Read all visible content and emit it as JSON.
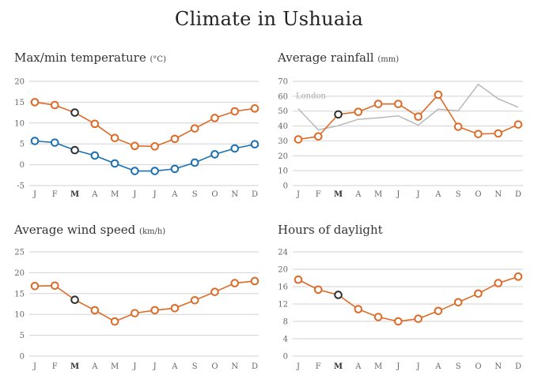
{
  "title": "Climate in Ushuaia",
  "colors": {
    "primary": "#dd6a26",
    "secondary": "#1b6fb1",
    "highlight": "#2f2f2f",
    "comparison": "#b8b8b8",
    "grid": "#d2d2d2"
  },
  "highlight_month_index": 2,
  "chart_data": [
    {
      "id": "temperature",
      "type": "line",
      "title": "Max/min temperature",
      "unit": "(°C)",
      "categories": [
        "J",
        "F",
        "M",
        "A",
        "M",
        "J",
        "J",
        "A",
        "S",
        "O",
        "N",
        "D"
      ],
      "yticks": [
        20,
        15,
        10,
        5,
        0,
        -5
      ],
      "ylim": [
        -5,
        20
      ],
      "grid": true,
      "series": [
        {
          "name": "Max",
          "color_key": "primary",
          "markers": true,
          "values": [
            15.0,
            14.3,
            12.5,
            9.8,
            6.4,
            4.5,
            4.4,
            6.2,
            8.7,
            11.2,
            12.8,
            13.5
          ]
        },
        {
          "name": "Min",
          "color_key": "secondary",
          "markers": true,
          "values": [
            5.7,
            5.3,
            3.5,
            2.2,
            0.3,
            -1.5,
            -1.5,
            -1.0,
            0.5,
            2.5,
            3.9,
            4.9
          ]
        }
      ]
    },
    {
      "id": "rainfall",
      "type": "line",
      "title": "Average rainfall",
      "unit": "(mm)",
      "categories": [
        "J",
        "F",
        "M",
        "A",
        "M",
        "J",
        "J",
        "A",
        "S",
        "O",
        "N",
        "D"
      ],
      "yticks": [
        70,
        60,
        50,
        40,
        30,
        20,
        10,
        0
      ],
      "ylim": [
        0,
        70
      ],
      "grid": true,
      "annotation": "London",
      "series": [
        {
          "name": "London",
          "color_key": "comparison",
          "markers": false,
          "values": [
            51.6,
            37.4,
            40.2,
            44.5,
            45.5,
            46.8,
            40.6,
            51.3,
            50.2,
            68.0,
            58.2,
            52.6
          ]
        },
        {
          "name": "Ushuaia",
          "color_key": "primary",
          "markers": true,
          "values": [
            31,
            33,
            47.8,
            49.5,
            54.8,
            54.8,
            46.3,
            61,
            39.5,
            34.6,
            35,
            41
          ]
        }
      ]
    },
    {
      "id": "wind",
      "type": "line",
      "title": "Average wind speed",
      "unit": "(km/h)",
      "categories": [
        "J",
        "F",
        "M",
        "A",
        "M",
        "J",
        "J",
        "A",
        "S",
        "O",
        "N",
        "D"
      ],
      "yticks": [
        25,
        20,
        15,
        10,
        5,
        0
      ],
      "ylim": [
        0,
        25
      ],
      "grid": true,
      "series": [
        {
          "name": "Wind speed",
          "color_key": "primary",
          "markers": true,
          "values": [
            16.8,
            16.9,
            13.5,
            11.0,
            8.3,
            10.3,
            11.0,
            11.5,
            13.4,
            15.4,
            17.5,
            18.0
          ]
        }
      ]
    },
    {
      "id": "daylight",
      "type": "line",
      "title": "Hours of daylight",
      "unit": "",
      "categories": [
        "J",
        "F",
        "M",
        "A",
        "M",
        "J",
        "J",
        "A",
        "S",
        "O",
        "N",
        "D"
      ],
      "yticks": [
        24,
        20,
        16,
        12,
        8,
        4,
        0
      ],
      "ylim": [
        0,
        24
      ],
      "grid": true,
      "series": [
        {
          "name": "Daylight",
          "color_key": "primary",
          "markers": true,
          "values": [
            17.6,
            15.3,
            14.1,
            10.8,
            9.0,
            8.0,
            8.6,
            10.4,
            12.4,
            14.4,
            16.8,
            18.3
          ]
        }
      ]
    }
  ]
}
